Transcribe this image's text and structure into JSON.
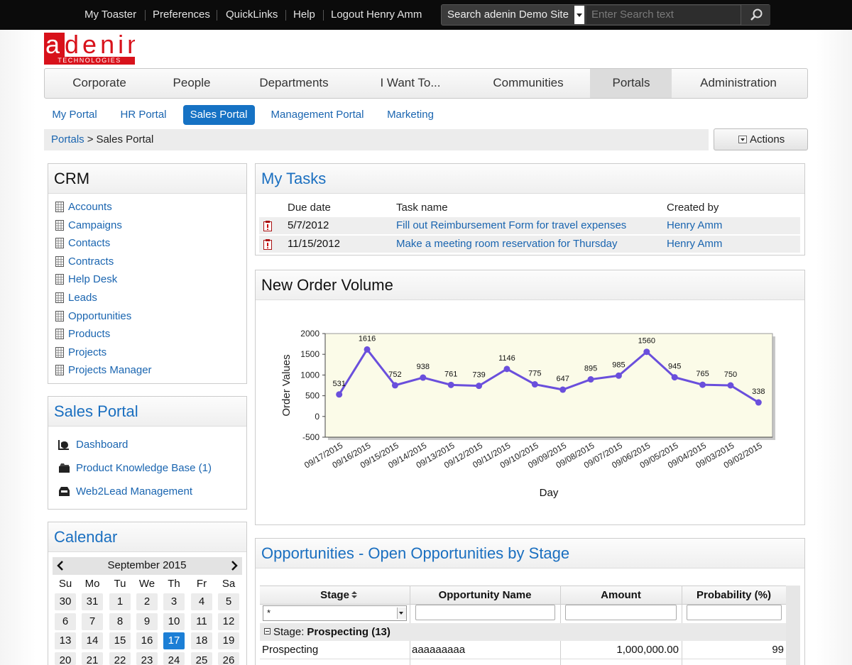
{
  "top_bar": {
    "links": [
      "My Toaster",
      "Preferences",
      "QuickLinks",
      "Help",
      "Logout Henry Amm"
    ],
    "search_scope": "Search adenin Demo Site",
    "search_placeholder": "Enter Search text"
  },
  "logo": {
    "name": "adenin",
    "tagline": "TECHNOLOGIES"
  },
  "main_nav": {
    "items": [
      "Corporate",
      "People",
      "Departments",
      "I Want To...",
      "Communities",
      "Portals",
      "Administration"
    ],
    "active": 5
  },
  "sub_nav": {
    "items": [
      "My Portal",
      "HR Portal",
      "Sales Portal",
      "Management Portal",
      "Marketing"
    ],
    "active": 2
  },
  "breadcrumb": {
    "parent": "Portals",
    "separator": ">",
    "current": "Sales Portal"
  },
  "actions": "Actions",
  "crm": {
    "title": "CRM",
    "items": [
      "Accounts",
      "Campaigns",
      "Contacts",
      "Contracts",
      "Help Desk",
      "Leads",
      "Opportunities",
      "Products",
      "Projects",
      "Projects Manager"
    ]
  },
  "sales_portal": {
    "title": "Sales Portal",
    "items": [
      "Dashboard",
      "Product Knowledge Base (1)",
      "Web2Lead Management"
    ]
  },
  "calendar": {
    "title": "Calendar",
    "month": "September 2015",
    "weekdays": [
      "Su",
      "Mo",
      "Tu",
      "We",
      "Th",
      "Fr",
      "Sa"
    ],
    "weeks": [
      [
        "30",
        "31",
        "1",
        "2",
        "3",
        "4",
        "5"
      ],
      [
        "6",
        "7",
        "8",
        "9",
        "10",
        "11",
        "12"
      ],
      [
        "13",
        "14",
        "15",
        "16",
        "17",
        "18",
        "19"
      ],
      [
        "20",
        "21",
        "22",
        "23",
        "24",
        "25",
        "26"
      ]
    ],
    "selected": [
      2,
      4
    ]
  },
  "tasks": {
    "title": "My Tasks",
    "columns": [
      "Due date",
      "Task name",
      "Created by"
    ],
    "rows": [
      [
        "5/7/2012",
        "Fill out Reimbursement Form for travel expenses",
        "Henry Amm"
      ],
      [
        "11/15/2012",
        "Make a meeting room reservation for Thursday",
        "Henry Amm"
      ]
    ]
  },
  "chart_data": {
    "type": "line",
    "title": "New Order Volume",
    "x_label": "Day",
    "y_label": "Order Values",
    "categories": [
      "09/17/2015",
      "09/16/2015",
      "09/15/2015",
      "09/14/2015",
      "09/13/2015",
      "09/12/2015",
      "09/11/2015",
      "09/10/2015",
      "09/09/2015",
      "09/08/2015",
      "09/07/2015",
      "09/06/2015",
      "09/05/2015",
      "09/04/2015",
      "09/03/2015",
      "09/02/2015"
    ],
    "values": [
      531,
      1616,
      752,
      938,
      761,
      739,
      1146,
      775,
      647,
      895,
      985,
      1560,
      945,
      765,
      750,
      338
    ],
    "color": "#6a4fdc",
    "ylim": [
      -500,
      2000
    ],
    "yticks": [
      -500,
      0,
      500,
      1000,
      1500,
      2000
    ],
    "grid": false
  },
  "opportunities": {
    "title": "Opportunities - Open Opportunities by Stage",
    "columns": [
      "Stage",
      "Opportunity Name",
      "Amount",
      "Probability (%)"
    ],
    "stage_filter": "*",
    "group_label": "Stage:",
    "group_value": "Prospecting (13)",
    "rows": [
      [
        "Prospecting",
        "aaaaaaaaa",
        "1,000,000.00",
        "99"
      ]
    ]
  }
}
